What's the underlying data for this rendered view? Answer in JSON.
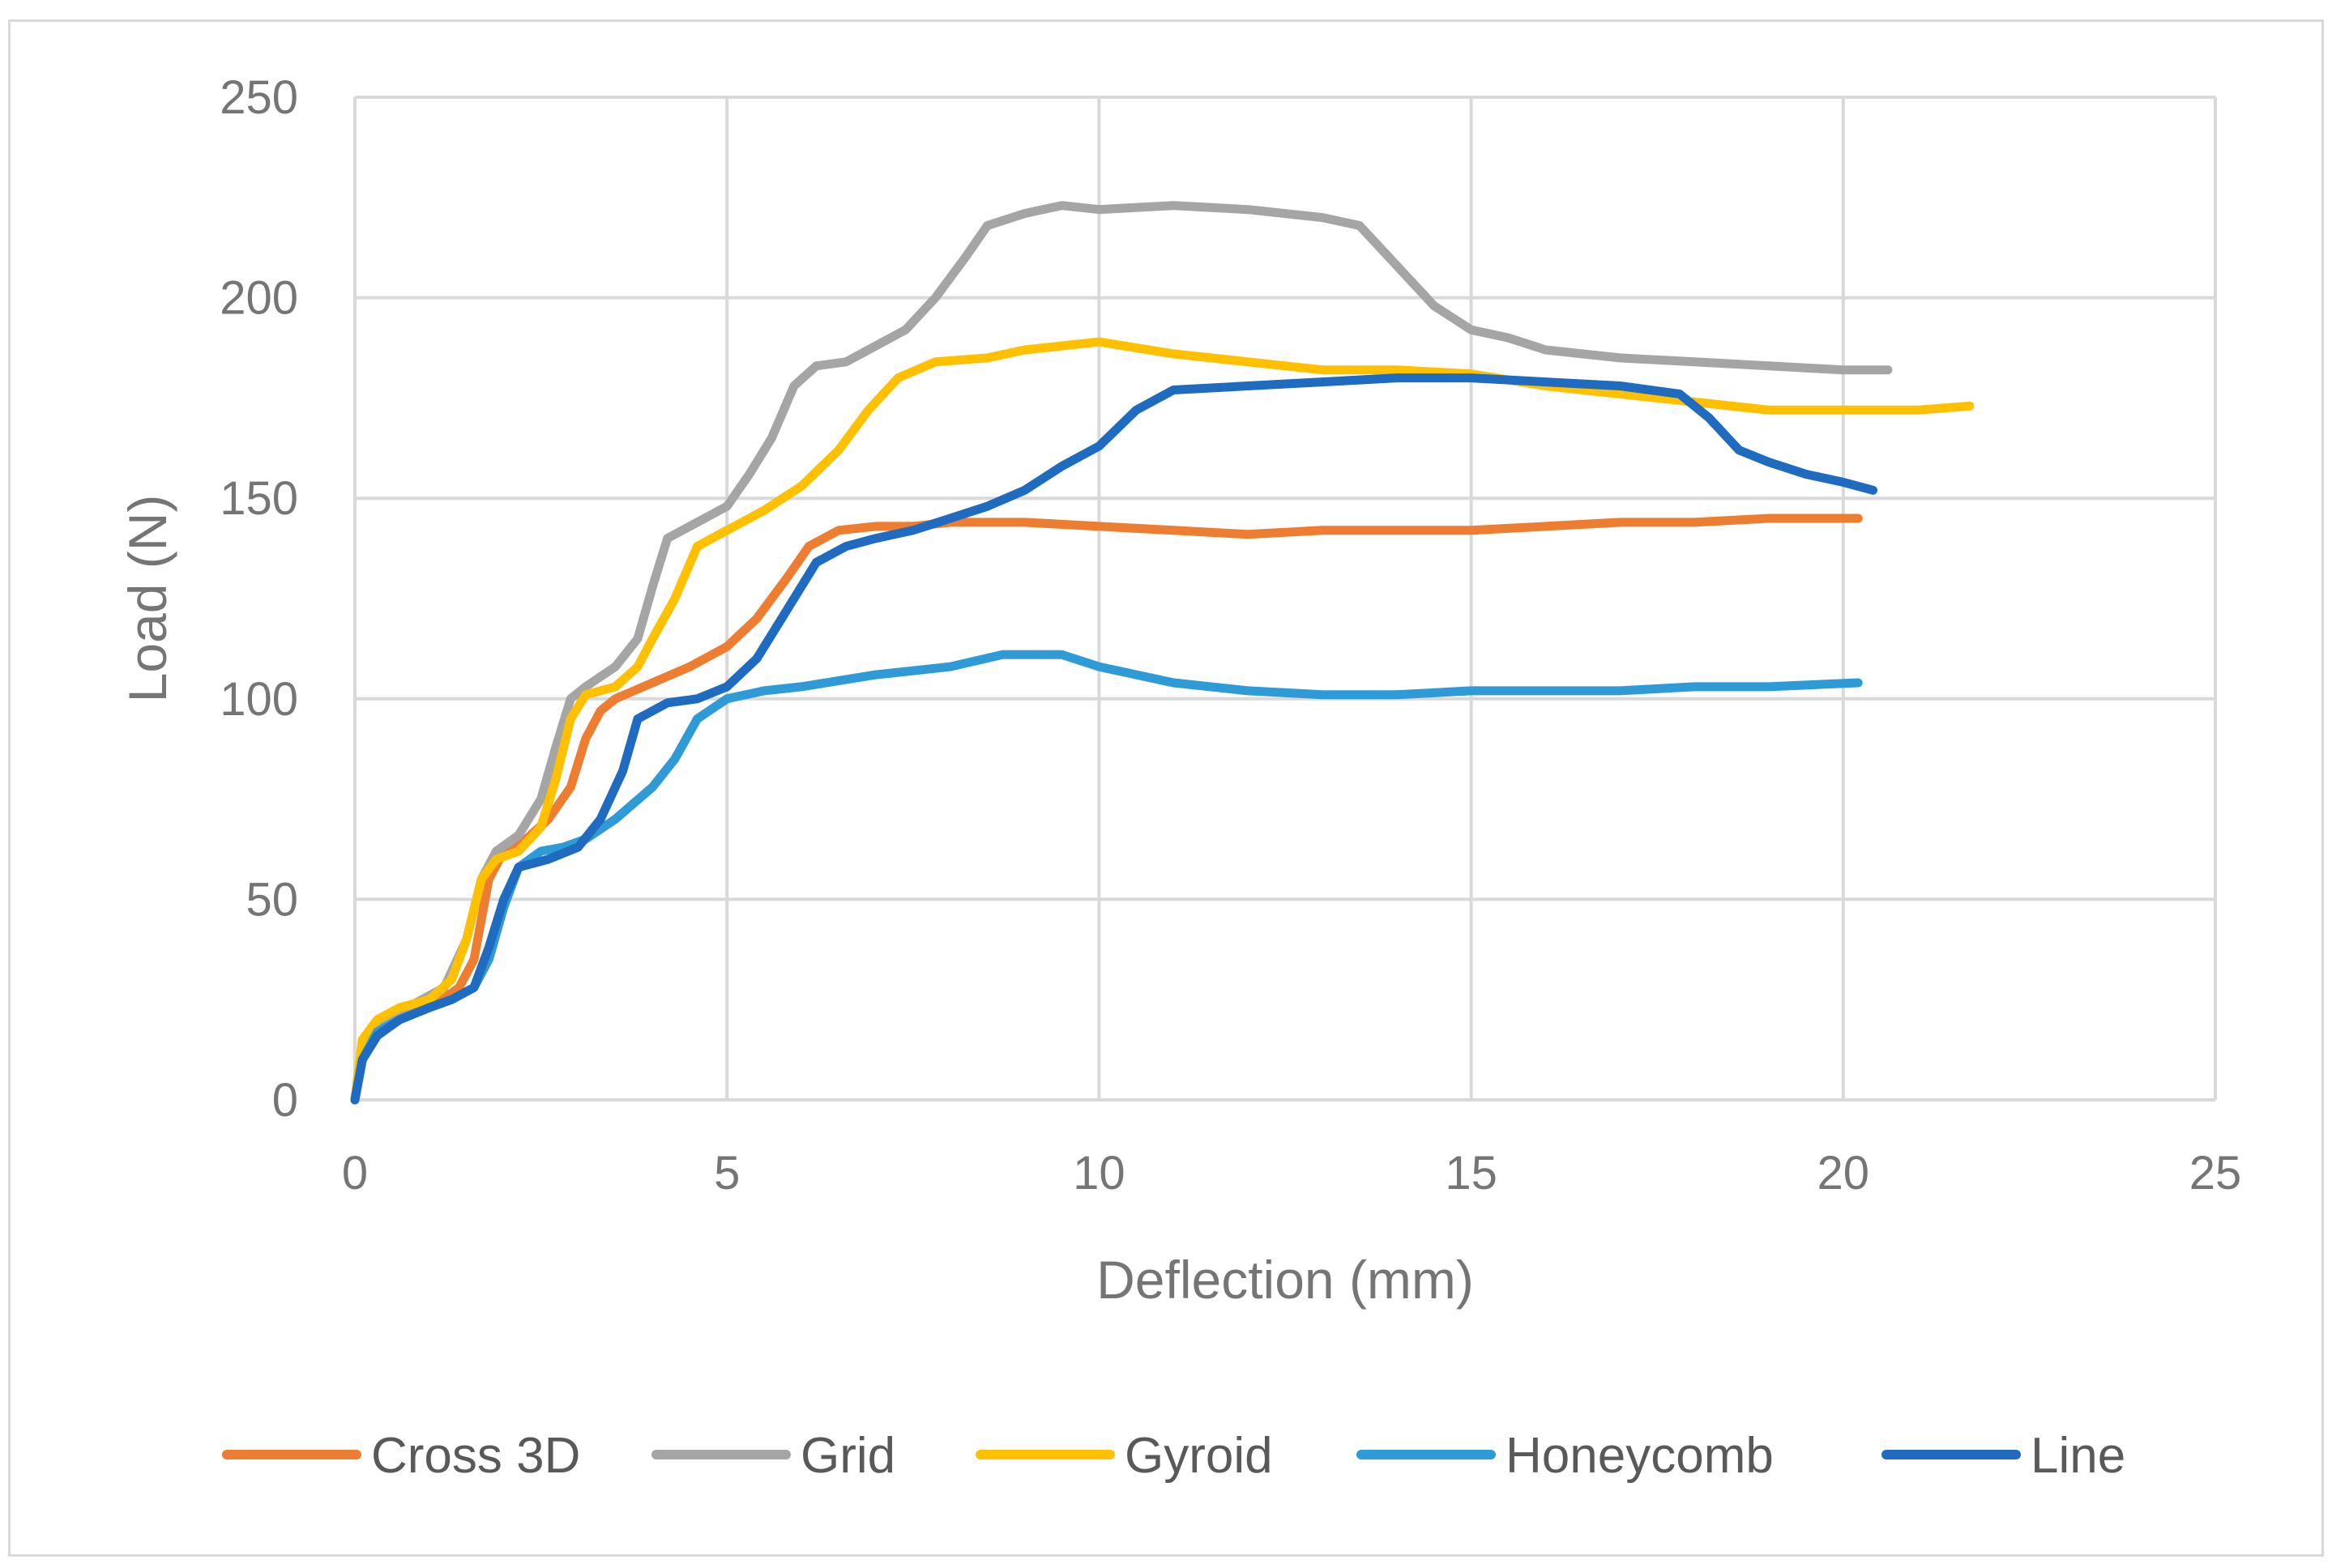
{
  "chart_data": {
    "type": "line",
    "title": "",
    "xlabel": "Deflection (mm)",
    "ylabel": "Load (N)",
    "xlim": [
      0,
      25
    ],
    "ylim": [
      0,
      250
    ],
    "xticks": [
      0,
      5,
      10,
      15,
      20,
      25
    ],
    "yticks": [
      0,
      50,
      100,
      150,
      200,
      250
    ],
    "grid": true,
    "legend_position": "bottom",
    "series": [
      {
        "name": "Cross 3D",
        "color": "#ed7d31",
        "points": [
          [
            0,
            0
          ],
          [
            0.1,
            12
          ],
          [
            0.3,
            18
          ],
          [
            0.5,
            20
          ],
          [
            0.8,
            22
          ],
          [
            1.1,
            24
          ],
          [
            1.4,
            28
          ],
          [
            1.6,
            35
          ],
          [
            1.7,
            45
          ],
          [
            1.8,
            55
          ],
          [
            2.0,
            62
          ],
          [
            2.3,
            65
          ],
          [
            2.6,
            70
          ],
          [
            2.9,
            78
          ],
          [
            3.1,
            90
          ],
          [
            3.3,
            97
          ],
          [
            3.5,
            100
          ],
          [
            4.0,
            104
          ],
          [
            4.5,
            108
          ],
          [
            5.0,
            113
          ],
          [
            5.4,
            120
          ],
          [
            5.8,
            130
          ],
          [
            6.1,
            138
          ],
          [
            6.5,
            142
          ],
          [
            7.0,
            143
          ],
          [
            7.5,
            143
          ],
          [
            8.0,
            144
          ],
          [
            9.0,
            144
          ],
          [
            10,
            143
          ],
          [
            11,
            142
          ],
          [
            12,
            141
          ],
          [
            13,
            142
          ],
          [
            14,
            142
          ],
          [
            15,
            142
          ],
          [
            16,
            143
          ],
          [
            17,
            144
          ],
          [
            18,
            144
          ],
          [
            19,
            145
          ],
          [
            20.2,
            145
          ]
        ]
      },
      {
        "name": "Grid",
        "color": "#a5a5a5",
        "points": [
          [
            0,
            0
          ],
          [
            0.1,
            14
          ],
          [
            0.4,
            20
          ],
          [
            0.8,
            24
          ],
          [
            1.2,
            28
          ],
          [
            1.5,
            40
          ],
          [
            1.7,
            55
          ],
          [
            1.9,
            62
          ],
          [
            2.2,
            66
          ],
          [
            2.5,
            75
          ],
          [
            2.7,
            88
          ],
          [
            2.9,
            100
          ],
          [
            3.1,
            103
          ],
          [
            3.5,
            108
          ],
          [
            3.8,
            115
          ],
          [
            4.0,
            128
          ],
          [
            4.2,
            140
          ],
          [
            4.6,
            144
          ],
          [
            5.0,
            148
          ],
          [
            5.3,
            156
          ],
          [
            5.6,
            165
          ],
          [
            5.9,
            178
          ],
          [
            6.2,
            183
          ],
          [
            6.6,
            184
          ],
          [
            7.0,
            188
          ],
          [
            7.4,
            192
          ],
          [
            7.8,
            200
          ],
          [
            8.2,
            210
          ],
          [
            8.5,
            218
          ],
          [
            9.0,
            221
          ],
          [
            9.5,
            223
          ],
          [
            10,
            222
          ],
          [
            11,
            223
          ],
          [
            12,
            222
          ],
          [
            13,
            220
          ],
          [
            13.5,
            218
          ],
          [
            14.0,
            208
          ],
          [
            14.5,
            198
          ],
          [
            15,
            192
          ],
          [
            15.5,
            190
          ],
          [
            16,
            187
          ],
          [
            17,
            185
          ],
          [
            18,
            184
          ],
          [
            19,
            183
          ],
          [
            20,
            182
          ],
          [
            20.6,
            182
          ]
        ]
      },
      {
        "name": "Gyroid",
        "color": "#ffc000",
        "points": [
          [
            0,
            0
          ],
          [
            0.1,
            15
          ],
          [
            0.3,
            20
          ],
          [
            0.6,
            23
          ],
          [
            1.0,
            25
          ],
          [
            1.3,
            30
          ],
          [
            1.5,
            40
          ],
          [
            1.7,
            55
          ],
          [
            1.9,
            60
          ],
          [
            2.2,
            62
          ],
          [
            2.5,
            68
          ],
          [
            2.7,
            80
          ],
          [
            2.9,
            95
          ],
          [
            3.1,
            101
          ],
          [
            3.5,
            103
          ],
          [
            3.8,
            108
          ],
          [
            4.0,
            115
          ],
          [
            4.3,
            125
          ],
          [
            4.6,
            138
          ],
          [
            5.0,
            142
          ],
          [
            5.5,
            147
          ],
          [
            6.0,
            153
          ],
          [
            6.5,
            162
          ],
          [
            6.9,
            172
          ],
          [
            7.3,
            180
          ],
          [
            7.8,
            184
          ],
          [
            8.5,
            185
          ],
          [
            9.0,
            187
          ],
          [
            10,
            189
          ],
          [
            11,
            186
          ],
          [
            12,
            184
          ],
          [
            13,
            182
          ],
          [
            14,
            182
          ],
          [
            15,
            181
          ],
          [
            16,
            178
          ],
          [
            17,
            176
          ],
          [
            18,
            174
          ],
          [
            19,
            172
          ],
          [
            20,
            172
          ],
          [
            21,
            172
          ],
          [
            21.7,
            173
          ]
        ]
      },
      {
        "name": "Honeycomb",
        "color": "#2e9bd6",
        "points": [
          [
            0,
            0
          ],
          [
            0.1,
            10
          ],
          [
            0.3,
            17
          ],
          [
            0.6,
            20
          ],
          [
            1.0,
            23
          ],
          [
            1.3,
            25
          ],
          [
            1.6,
            28
          ],
          [
            1.8,
            35
          ],
          [
            2.0,
            48
          ],
          [
            2.2,
            58
          ],
          [
            2.5,
            62
          ],
          [
            2.8,
            63
          ],
          [
            3.1,
            65
          ],
          [
            3.5,
            70
          ],
          [
            4.0,
            78
          ],
          [
            4.3,
            85
          ],
          [
            4.6,
            95
          ],
          [
            5.0,
            100
          ],
          [
            5.5,
            102
          ],
          [
            6.0,
            103
          ],
          [
            7.0,
            106
          ],
          [
            8.0,
            108
          ],
          [
            8.7,
            111
          ],
          [
            9.5,
            111
          ],
          [
            10,
            108
          ],
          [
            11,
            104
          ],
          [
            12,
            102
          ],
          [
            13,
            101
          ],
          [
            14,
            101
          ],
          [
            15,
            102
          ],
          [
            16,
            102
          ],
          [
            17,
            102
          ],
          [
            18,
            103
          ],
          [
            19,
            103
          ],
          [
            20.2,
            104
          ]
        ]
      },
      {
        "name": "Line",
        "color": "#1f6bbf",
        "points": [
          [
            0,
            0
          ],
          [
            0.1,
            10
          ],
          [
            0.3,
            16
          ],
          [
            0.6,
            20
          ],
          [
            1.0,
            23
          ],
          [
            1.3,
            25
          ],
          [
            1.6,
            28
          ],
          [
            1.8,
            38
          ],
          [
            2.0,
            50
          ],
          [
            2.2,
            58
          ],
          [
            2.6,
            60
          ],
          [
            3.0,
            63
          ],
          [
            3.3,
            70
          ],
          [
            3.6,
            82
          ],
          [
            3.8,
            95
          ],
          [
            4.2,
            99
          ],
          [
            4.6,
            100
          ],
          [
            5.0,
            103
          ],
          [
            5.4,
            110
          ],
          [
            5.8,
            122
          ],
          [
            6.2,
            134
          ],
          [
            6.6,
            138
          ],
          [
            7.0,
            140
          ],
          [
            7.5,
            142
          ],
          [
            8.0,
            145
          ],
          [
            8.5,
            148
          ],
          [
            9.0,
            152
          ],
          [
            9.5,
            158
          ],
          [
            10,
            163
          ],
          [
            10.5,
            172
          ],
          [
            11,
            177
          ],
          [
            12,
            178
          ],
          [
            13,
            179
          ],
          [
            14,
            180
          ],
          [
            15,
            180
          ],
          [
            16,
            179
          ],
          [
            17,
            178
          ],
          [
            17.8,
            176
          ],
          [
            18.2,
            170
          ],
          [
            18.6,
            162
          ],
          [
            19,
            159
          ],
          [
            19.5,
            156
          ],
          [
            20,
            154
          ],
          [
            20.4,
            152
          ]
        ]
      }
    ]
  }
}
